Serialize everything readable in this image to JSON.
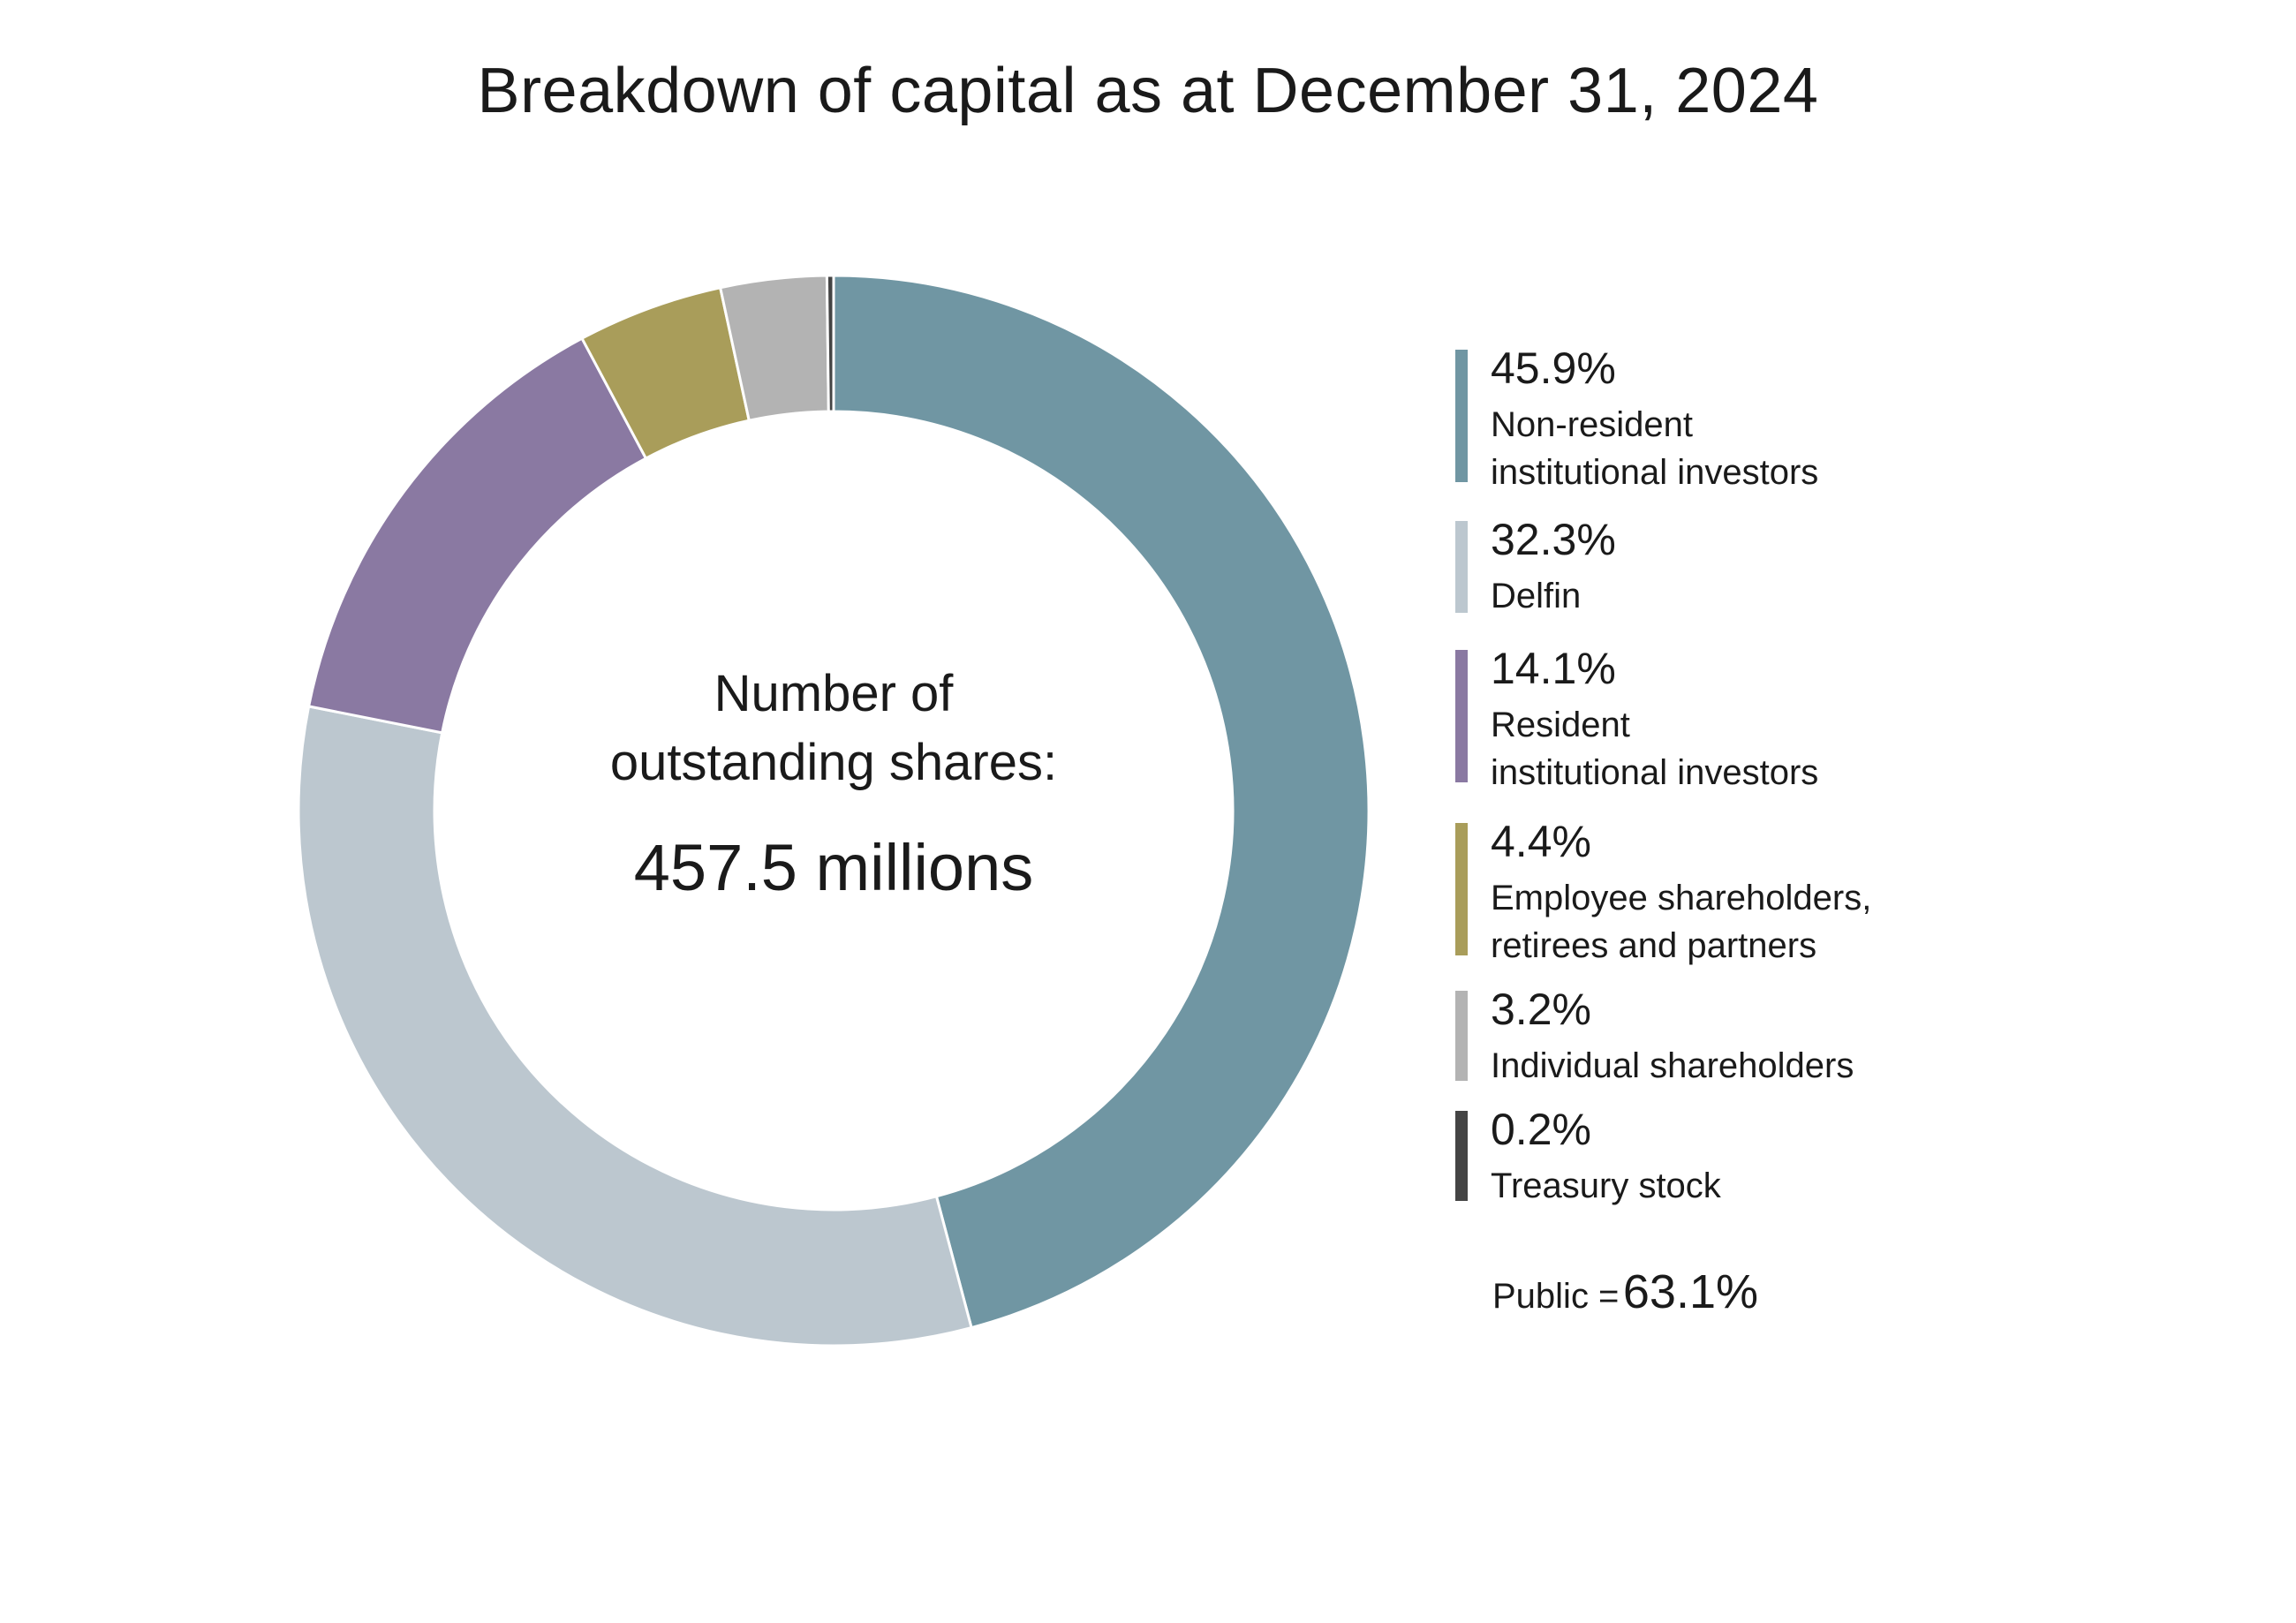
{
  "chart_data": {
    "type": "pie",
    "title": "Breakdown of capital as at December 31, 2024",
    "center_label_line1": "Number of",
    "center_label_line2": "outstanding shares:",
    "center_value": "457.5 millions",
    "unit": "%",
    "slices": [
      {
        "value": 45.9,
        "pct_label": "45.9%",
        "label_lines": [
          "Non-resident",
          "institutional investors"
        ],
        "color": "#7096a3"
      },
      {
        "value": 32.3,
        "pct_label": "32.3%",
        "label_lines": [
          "Delfin"
        ],
        "color": "#bcc7cf"
      },
      {
        "value": 14.1,
        "pct_label": "14.1%",
        "label_lines": [
          "Resident",
          "institutional investors"
        ],
        "color": "#8a79a2"
      },
      {
        "value": 4.4,
        "pct_label": "4.4%",
        "label_lines": [
          "Employee shareholders,",
          "retirees and partners"
        ],
        "color": "#a99d5a"
      },
      {
        "value": 3.2,
        "pct_label": "3.2%",
        "label_lines": [
          "Individual shareholders"
        ],
        "color": "#b3b3b3"
      },
      {
        "value": 0.2,
        "pct_label": "0.2%",
        "label_lines": [
          "Treasury stock"
        ],
        "color": "#444444"
      }
    ],
    "legend_position": "right"
  },
  "public_summary": {
    "label": "Public =",
    "value": "63.1%"
  }
}
